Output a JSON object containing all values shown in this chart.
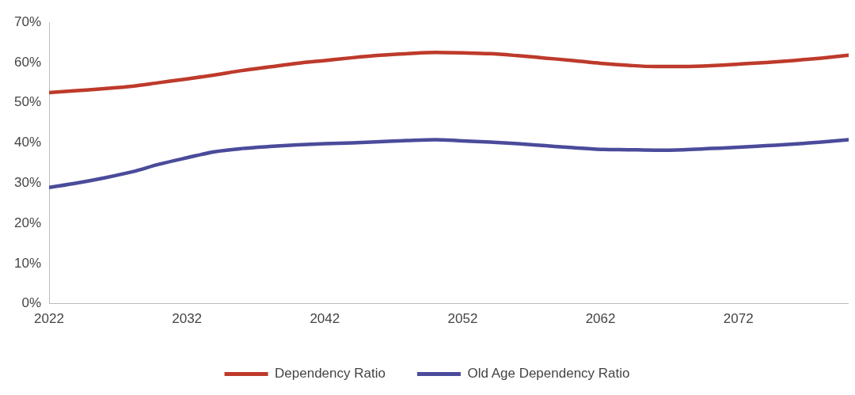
{
  "chart_data": {
    "type": "line",
    "x": [
      2022,
      2024,
      2026,
      2028,
      2030,
      2032,
      2034,
      2036,
      2038,
      2040,
      2042,
      2044,
      2046,
      2048,
      2050,
      2052,
      2054,
      2056,
      2058,
      2060,
      2062,
      2064,
      2066,
      2068,
      2070,
      2072,
      2074,
      2076,
      2078,
      2080
    ],
    "series": [
      {
        "name": "Dependency Ratio",
        "color": "#be3a2b",
        "values": [
          52.5,
          53.0,
          53.5,
          54.1,
          55.0,
          55.9,
          56.9,
          58.0,
          58.9,
          59.8,
          60.5,
          61.2,
          61.8,
          62.2,
          62.5,
          62.4,
          62.2,
          61.7,
          61.1,
          60.5,
          59.8,
          59.3,
          59.0,
          59.0,
          59.2,
          59.6,
          60.0,
          60.5,
          61.1,
          61.8
        ]
      },
      {
        "name": "Old Age Dependency Ratio",
        "color": "#4b4b9b",
        "values": [
          28.9,
          30.0,
          31.3,
          32.8,
          34.7,
          36.3,
          37.8,
          38.6,
          39.1,
          39.5,
          39.8,
          40.0,
          40.3,
          40.6,
          40.8,
          40.5,
          40.2,
          39.8,
          39.3,
          38.8,
          38.4,
          38.3,
          38.2,
          38.3,
          38.6,
          38.9,
          39.3,
          39.7,
          40.2,
          40.8
        ]
      }
    ],
    "xlim": [
      2022,
      2080
    ],
    "xticks": [
      2022,
      2032,
      2042,
      2052,
      2062,
      2072
    ],
    "ylim": [
      0,
      70
    ],
    "yticks": [
      {
        "value": 0,
        "label": "0%"
      },
      {
        "value": 10,
        "label": "10%"
      },
      {
        "value": 20,
        "label": "20%"
      },
      {
        "value": 30,
        "label": "30%"
      },
      {
        "value": 40,
        "label": "40%"
      },
      {
        "value": 50,
        "label": "50%"
      },
      {
        "value": 60,
        "label": "60%"
      },
      {
        "value": 70,
        "label": "70%"
      }
    ],
    "grid": false,
    "legend": "bottom",
    "marker": "none",
    "line_style": "solid"
  }
}
